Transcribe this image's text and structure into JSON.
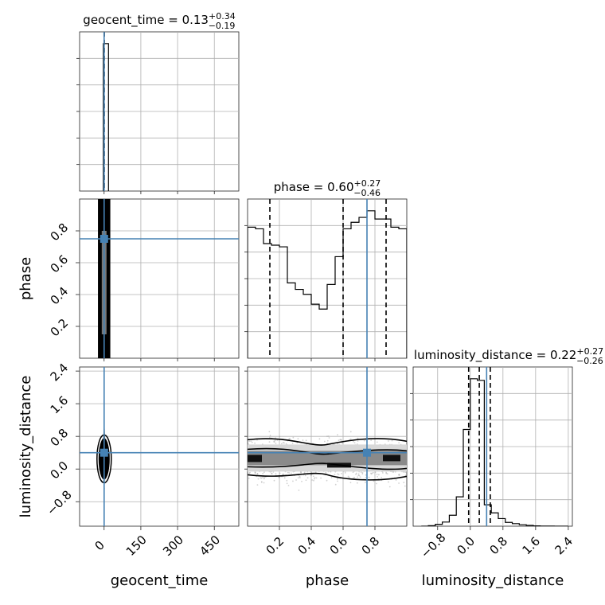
{
  "colors": {
    "truth": "#4682b4",
    "line": "#000000",
    "grid": "#b0b0b0",
    "point": "#9a9a9a"
  },
  "chart_data": {
    "type": "corner",
    "parameters": [
      {
        "name": "geocent_time",
        "xlabel": "geocent_time",
        "ylabel": "",
        "title_main": "geocent_time = 0.13",
        "title_sup": "+0.34",
        "title_sub": "−0.19",
        "range": [
          -100,
          550
        ],
        "ticks": [
          0,
          150,
          300,
          450
        ],
        "ticklabels": [
          "0",
          "150",
          "300",
          "450"
        ],
        "truth": 0.13,
        "quantiles": [
          -0.06,
          0.13,
          0.47
        ]
      },
      {
        "name": "phase",
        "xlabel": "phase",
        "ylabel": "phase",
        "title_main": "phase = 0.60",
        "title_sup": "+0.27",
        "title_sub": "−0.46",
        "range": [
          0.0,
          1.0
        ],
        "ticks": [
          0.2,
          0.4,
          0.6,
          0.8
        ],
        "ticklabels": [
          "0.2",
          "0.4",
          "0.6",
          "0.8"
        ],
        "truth": 0.75,
        "quantiles": [
          0.14,
          0.6,
          0.87
        ]
      },
      {
        "name": "luminosity_distance",
        "xlabel": "luminosity_distance",
        "ylabel": "luminosity_distance",
        "title_main": "luminosity_distance = 0.22",
        "title_sup": "+0.27",
        "title_sub": "−0.26",
        "range": [
          -1.4,
          2.5
        ],
        "ticks": [
          -0.8,
          0.0,
          0.8,
          1.6,
          2.4
        ],
        "ticklabels": [
          "−0.8",
          "0.0",
          "0.8",
          "1.6",
          "2.4"
        ],
        "truth": 0.4,
        "quantiles": [
          -0.04,
          0.22,
          0.49
        ]
      }
    ],
    "marginals": [
      {
        "param": "geocent_time",
        "bins": [
          -3,
          18
        ],
        "counts": [
          100
        ]
      },
      {
        "param": "phase",
        "bins": [
          0.0,
          1.0
        ],
        "counts": [
          0.8,
          0.79,
          0.7,
          0.69,
          0.68,
          0.46,
          0.42,
          0.39,
          0.33,
          0.3,
          0.45,
          0.62,
          0.79,
          0.83,
          0.86,
          0.9,
          0.85,
          0.85,
          0.8,
          0.79
        ]
      },
      {
        "param": "luminosity_distance",
        "bins": [
          -1.2,
          2.4
        ],
        "counts": [
          0,
          0.3,
          1.2,
          2.6,
          6.9,
          18.5,
          61,
          93,
          92,
          13.5,
          8.4,
          4.8,
          2.4,
          1.6,
          0.9,
          0.5,
          0.2,
          0.1,
          0.05,
          0.02,
          0.0
        ]
      }
    ],
    "hist_ylim": [
      0,
      100
    ],
    "grid": true,
    "truth_point": {
      "geocent_time": 0.13,
      "phase": 0.75,
      "luminosity_distance": 0.4
    }
  }
}
